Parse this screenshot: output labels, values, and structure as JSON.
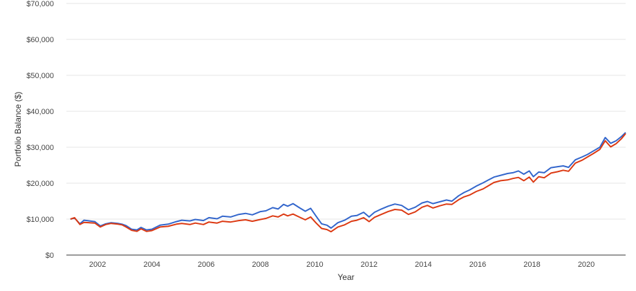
{
  "chart_data": {
    "type": "line",
    "xlabel": "Year",
    "ylabel": "Portfolio Balance ($)",
    "xlim": [
      2000.85,
      2021.45
    ],
    "ylim": [
      0,
      70000
    ],
    "y_ticks": [
      0,
      10000,
      20000,
      30000,
      40000,
      50000,
      60000,
      70000
    ],
    "y_tick_labels": [
      "$0",
      "$10,000",
      "$20,000",
      "$30,000",
      "$40,000",
      "$50,000",
      "$60,000",
      "$70,000"
    ],
    "x_ticks": [
      2002,
      2004,
      2006,
      2008,
      2010,
      2012,
      2014,
      2016,
      2018,
      2020
    ],
    "x_tick_labels": [
      "2002",
      "2004",
      "2006",
      "2008",
      "2010",
      "2012",
      "2014",
      "2016",
      "2018",
      "2020"
    ],
    "grid": "horizontal",
    "legend": "none",
    "series": [
      {
        "color": "#3366cc",
        "points": [
          [
            2001.0,
            10000
          ],
          [
            2001.15,
            10300
          ],
          [
            2001.35,
            8700
          ],
          [
            2001.5,
            9700
          ],
          [
            2001.7,
            9500
          ],
          [
            2001.9,
            9300
          ],
          [
            2002.1,
            8100
          ],
          [
            2002.3,
            8700
          ],
          [
            2002.5,
            9000
          ],
          [
            2002.75,
            8800
          ],
          [
            2002.9,
            8600
          ],
          [
            2003.05,
            8200
          ],
          [
            2003.25,
            7200
          ],
          [
            2003.45,
            7000
          ],
          [
            2003.6,
            7700
          ],
          [
            2003.8,
            7000
          ],
          [
            2004.0,
            7200
          ],
          [
            2004.3,
            8300
          ],
          [
            2004.6,
            8600
          ],
          [
            2004.9,
            9300
          ],
          [
            2005.1,
            9700
          ],
          [
            2005.4,
            9500
          ],
          [
            2005.6,
            9900
          ],
          [
            2005.9,
            9600
          ],
          [
            2006.1,
            10400
          ],
          [
            2006.4,
            10100
          ],
          [
            2006.6,
            10800
          ],
          [
            2006.9,
            10600
          ],
          [
            2007.2,
            11300
          ],
          [
            2007.45,
            11600
          ],
          [
            2007.7,
            11200
          ],
          [
            2008.0,
            12100
          ],
          [
            2008.2,
            12300
          ],
          [
            2008.45,
            13200
          ],
          [
            2008.65,
            12800
          ],
          [
            2008.85,
            14100
          ],
          [
            2009.0,
            13600
          ],
          [
            2009.2,
            14300
          ],
          [
            2009.45,
            13100
          ],
          [
            2009.65,
            12200
          ],
          [
            2009.85,
            13000
          ],
          [
            2010.05,
            10800
          ],
          [
            2010.25,
            8700
          ],
          [
            2010.45,
            8300
          ],
          [
            2010.6,
            7500
          ],
          [
            2010.85,
            9000
          ],
          [
            2011.1,
            9700
          ],
          [
            2011.35,
            10800
          ],
          [
            2011.55,
            11000
          ],
          [
            2011.8,
            11900
          ],
          [
            2012.0,
            10600
          ],
          [
            2012.2,
            11900
          ],
          [
            2012.45,
            12800
          ],
          [
            2012.7,
            13600
          ],
          [
            2012.95,
            14200
          ],
          [
            2013.2,
            13800
          ],
          [
            2013.45,
            12600
          ],
          [
            2013.7,
            13300
          ],
          [
            2013.95,
            14500
          ],
          [
            2014.15,
            14900
          ],
          [
            2014.35,
            14300
          ],
          [
            2014.6,
            14800
          ],
          [
            2014.85,
            15300
          ],
          [
            2015.05,
            15000
          ],
          [
            2015.3,
            16500
          ],
          [
            2015.5,
            17400
          ],
          [
            2015.7,
            18100
          ],
          [
            2015.95,
            19200
          ],
          [
            2016.2,
            20100
          ],
          [
            2016.4,
            20900
          ],
          [
            2016.6,
            21700
          ],
          [
            2016.85,
            22200
          ],
          [
            2017.1,
            22700
          ],
          [
            2017.3,
            22900
          ],
          [
            2017.5,
            23400
          ],
          [
            2017.7,
            22500
          ],
          [
            2017.9,
            23400
          ],
          [
            2018.05,
            21800
          ],
          [
            2018.25,
            23100
          ],
          [
            2018.45,
            22900
          ],
          [
            2018.7,
            24300
          ],
          [
            2018.95,
            24600
          ],
          [
            2019.15,
            24800
          ],
          [
            2019.35,
            24400
          ],
          [
            2019.6,
            26500
          ],
          [
            2019.85,
            27300
          ],
          [
            2020.05,
            28000
          ],
          [
            2020.25,
            28900
          ],
          [
            2020.5,
            30000
          ],
          [
            2020.7,
            32700
          ],
          [
            2020.9,
            31100
          ],
          [
            2021.1,
            31800
          ],
          [
            2021.3,
            33000
          ],
          [
            2021.45,
            34100
          ]
        ]
      },
      {
        "color": "#dc3912",
        "points": [
          [
            2001.0,
            10000
          ],
          [
            2001.15,
            10400
          ],
          [
            2001.35,
            8500
          ],
          [
            2001.5,
            9100
          ],
          [
            2001.7,
            9000
          ],
          [
            2001.9,
            8900
          ],
          [
            2002.1,
            7800
          ],
          [
            2002.3,
            8500
          ],
          [
            2002.5,
            8800
          ],
          [
            2002.75,
            8600
          ],
          [
            2002.9,
            8400
          ],
          [
            2003.05,
            7800
          ],
          [
            2003.25,
            6900
          ],
          [
            2003.45,
            6600
          ],
          [
            2003.6,
            7300
          ],
          [
            2003.8,
            6600
          ],
          [
            2004.0,
            6800
          ],
          [
            2004.3,
            7800
          ],
          [
            2004.6,
            8000
          ],
          [
            2004.9,
            8600
          ],
          [
            2005.1,
            8800
          ],
          [
            2005.4,
            8500
          ],
          [
            2005.6,
            8900
          ],
          [
            2005.9,
            8500
          ],
          [
            2006.1,
            9200
          ],
          [
            2006.4,
            8900
          ],
          [
            2006.6,
            9400
          ],
          [
            2006.9,
            9200
          ],
          [
            2007.2,
            9600
          ],
          [
            2007.45,
            9800
          ],
          [
            2007.7,
            9400
          ],
          [
            2008.0,
            9900
          ],
          [
            2008.2,
            10200
          ],
          [
            2008.45,
            10900
          ],
          [
            2008.65,
            10600
          ],
          [
            2008.85,
            11400
          ],
          [
            2009.0,
            10900
          ],
          [
            2009.2,
            11400
          ],
          [
            2009.45,
            10500
          ],
          [
            2009.65,
            9800
          ],
          [
            2009.85,
            10600
          ],
          [
            2010.05,
            8900
          ],
          [
            2010.25,
            7400
          ],
          [
            2010.45,
            7100
          ],
          [
            2010.6,
            6500
          ],
          [
            2010.85,
            7800
          ],
          [
            2011.1,
            8400
          ],
          [
            2011.35,
            9400
          ],
          [
            2011.55,
            9700
          ],
          [
            2011.8,
            10400
          ],
          [
            2012.0,
            9300
          ],
          [
            2012.2,
            10500
          ],
          [
            2012.45,
            11300
          ],
          [
            2012.7,
            12100
          ],
          [
            2012.95,
            12700
          ],
          [
            2013.2,
            12500
          ],
          [
            2013.45,
            11300
          ],
          [
            2013.7,
            12000
          ],
          [
            2013.95,
            13300
          ],
          [
            2014.15,
            13800
          ],
          [
            2014.35,
            13100
          ],
          [
            2014.6,
            13700
          ],
          [
            2014.85,
            14200
          ],
          [
            2015.05,
            14100
          ],
          [
            2015.3,
            15400
          ],
          [
            2015.5,
            16200
          ],
          [
            2015.7,
            16700
          ],
          [
            2015.95,
            17700
          ],
          [
            2016.2,
            18400
          ],
          [
            2016.4,
            19300
          ],
          [
            2016.6,
            20200
          ],
          [
            2016.85,
            20700
          ],
          [
            2017.1,
            20900
          ],
          [
            2017.3,
            21300
          ],
          [
            2017.5,
            21600
          ],
          [
            2017.7,
            20700
          ],
          [
            2017.9,
            21700
          ],
          [
            2018.05,
            20300
          ],
          [
            2018.25,
            21800
          ],
          [
            2018.45,
            21500
          ],
          [
            2018.7,
            22800
          ],
          [
            2018.95,
            23200
          ],
          [
            2019.15,
            23600
          ],
          [
            2019.35,
            23300
          ],
          [
            2019.6,
            25600
          ],
          [
            2019.85,
            26400
          ],
          [
            2020.05,
            27300
          ],
          [
            2020.25,
            28200
          ],
          [
            2020.5,
            29400
          ],
          [
            2020.7,
            31800
          ],
          [
            2020.9,
            30100
          ],
          [
            2021.1,
            31000
          ],
          [
            2021.3,
            32400
          ],
          [
            2021.45,
            33800
          ]
        ]
      }
    ]
  }
}
